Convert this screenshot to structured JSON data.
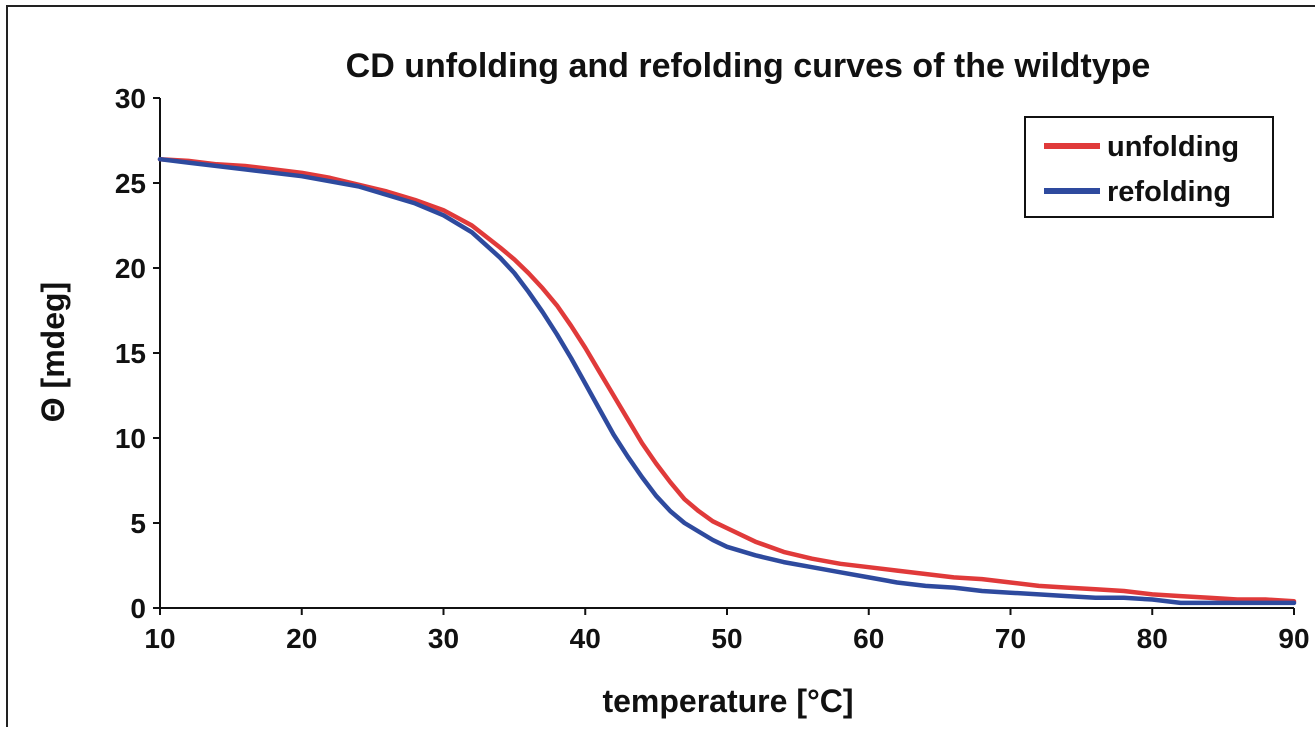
{
  "chart_data": {
    "type": "line",
    "title": "CD unfolding and refolding curves of the wildtype",
    "xlabel": "temperature [°C]",
    "ylabel": "Θ [mdeg]",
    "xlim": [
      10,
      90
    ],
    "ylim": [
      0,
      30
    ],
    "xticks": [
      10,
      20,
      30,
      40,
      50,
      60,
      70,
      80,
      90
    ],
    "yticks": [
      0,
      5,
      10,
      15,
      20,
      25,
      30
    ],
    "grid": false,
    "legend_position": "top-right",
    "series": [
      {
        "name": "unfolding",
        "color": "#e03a3a",
        "x": [
          10,
          12,
          14,
          16,
          18,
          20,
          22,
          24,
          26,
          28,
          30,
          32,
          34,
          35,
          36,
          37,
          38,
          39,
          40,
          41,
          42,
          43,
          44,
          45,
          46,
          47,
          48,
          49,
          50,
          52,
          54,
          56,
          58,
          60,
          62,
          64,
          66,
          68,
          70,
          72,
          74,
          76,
          78,
          80,
          82,
          84,
          86,
          88,
          90
        ],
        "y": [
          26.4,
          26.3,
          26.1,
          26.0,
          25.8,
          25.6,
          25.3,
          24.9,
          24.5,
          24.0,
          23.4,
          22.5,
          21.2,
          20.5,
          19.7,
          18.8,
          17.8,
          16.6,
          15.3,
          13.9,
          12.5,
          11.1,
          9.7,
          8.5,
          7.4,
          6.4,
          5.7,
          5.1,
          4.7,
          3.9,
          3.3,
          2.9,
          2.6,
          2.4,
          2.2,
          2.0,
          1.8,
          1.7,
          1.5,
          1.3,
          1.2,
          1.1,
          1.0,
          0.8,
          0.7,
          0.6,
          0.5,
          0.5,
          0.4
        ]
      },
      {
        "name": "refolding",
        "color": "#2e4a9e",
        "x": [
          10,
          12,
          14,
          16,
          18,
          20,
          22,
          24,
          26,
          28,
          30,
          32,
          34,
          35,
          36,
          37,
          38,
          39,
          40,
          41,
          42,
          43,
          44,
          45,
          46,
          47,
          48,
          49,
          50,
          52,
          54,
          56,
          58,
          60,
          62,
          64,
          66,
          68,
          70,
          72,
          74,
          76,
          78,
          80,
          82,
          84,
          86,
          88,
          90
        ],
        "y": [
          26.4,
          26.2,
          26.0,
          25.8,
          25.6,
          25.4,
          25.1,
          24.8,
          24.3,
          23.8,
          23.1,
          22.1,
          20.6,
          19.7,
          18.6,
          17.4,
          16.1,
          14.7,
          13.2,
          11.7,
          10.2,
          8.9,
          7.7,
          6.6,
          5.7,
          5.0,
          4.5,
          4.0,
          3.6,
          3.1,
          2.7,
          2.4,
          2.1,
          1.8,
          1.5,
          1.3,
          1.2,
          1.0,
          0.9,
          0.8,
          0.7,
          0.6,
          0.6,
          0.5,
          0.3,
          0.3,
          0.3,
          0.3,
          0.3
        ]
      }
    ]
  }
}
